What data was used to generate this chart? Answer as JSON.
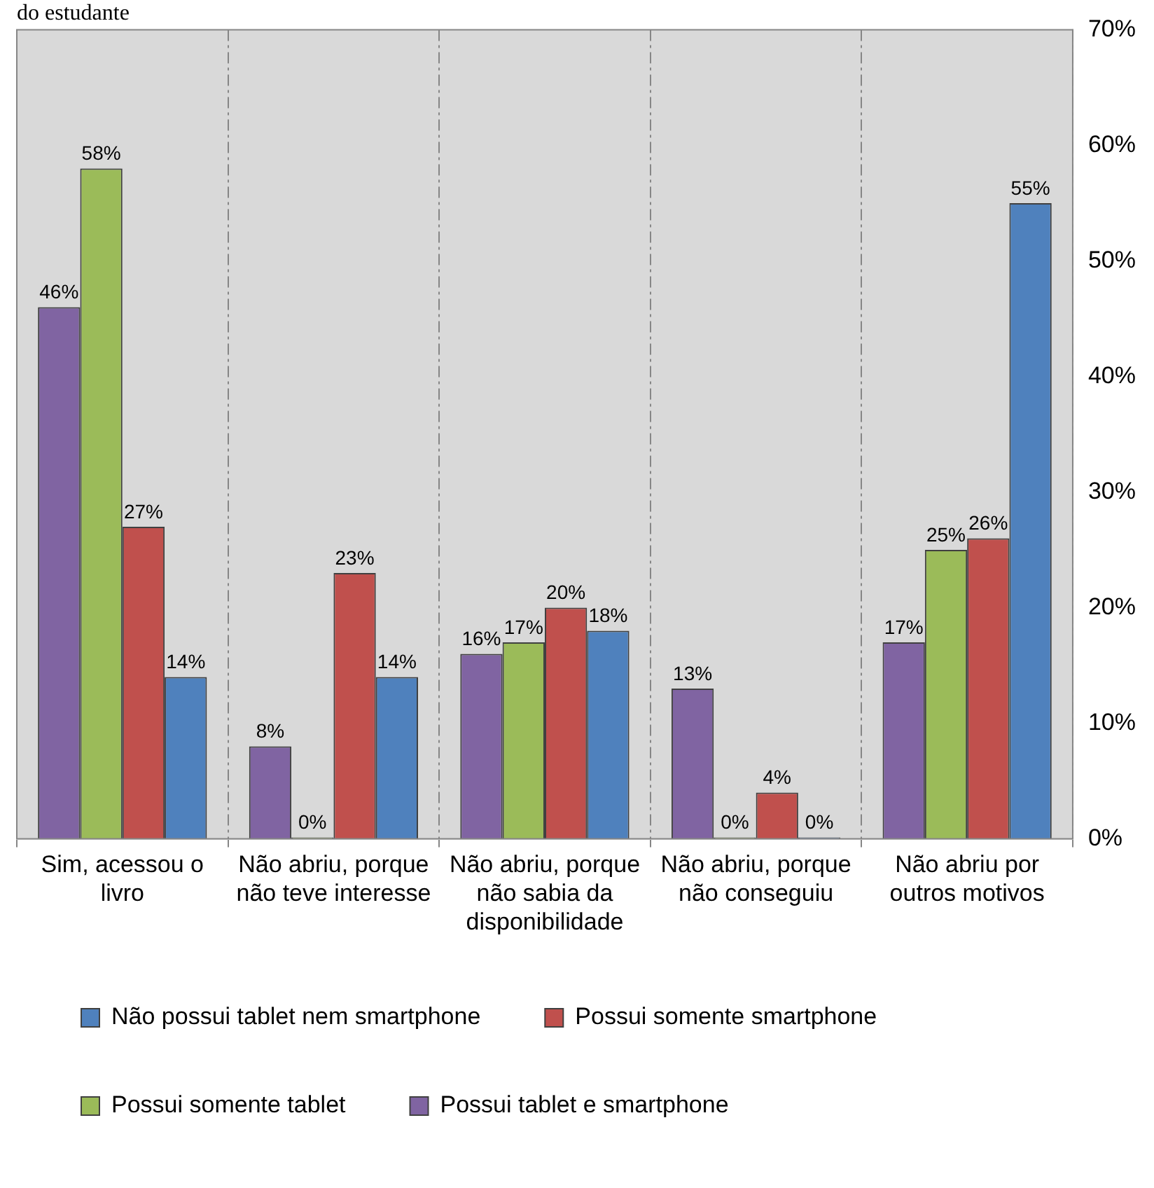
{
  "chart_data": {
    "type": "bar",
    "title": "do estudante",
    "categories": [
      "Sim, acessou o livro",
      "Não abriu, porque não teve interesse",
      "Não abriu, porque não sabia da disponibilidade",
      "Não abriu, porque não conseguiu",
      "Não abriu por outros motivos"
    ],
    "series": [
      {
        "name": "Possui tablet e smartphone",
        "color": "#8064a2",
        "values": [
          46,
          8,
          16,
          13,
          17
        ],
        "value_labels": [
          "46%",
          "8%",
          "16%",
          "13%",
          "17%"
        ]
      },
      {
        "name": "Possui somente tablet",
        "color": "#9bbb59",
        "values": [
          58,
          0,
          17,
          0,
          25
        ],
        "value_labels": [
          "58%",
          "0%",
          "17%",
          "0%",
          "25%"
        ]
      },
      {
        "name": "Possui somente smartphone",
        "color": "#c0504d",
        "values": [
          27,
          23,
          20,
          4,
          26
        ],
        "value_labels": [
          "27%",
          "23%",
          "20%",
          "4%",
          "26%"
        ]
      },
      {
        "name": "Não possui tablet nem smartphone",
        "color": "#4f81bd",
        "values": [
          14,
          14,
          18,
          0,
          55
        ],
        "value_labels": [
          "14%",
          "14%",
          "18%",
          "0%",
          "55%"
        ]
      }
    ],
    "ylim": [
      0,
      70
    ],
    "yticks": [
      {
        "value": 0,
        "label": "0%"
      },
      {
        "value": 10,
        "label": "10%"
      },
      {
        "value": 20,
        "label": "20%"
      },
      {
        "value": 30,
        "label": "30%"
      },
      {
        "value": 40,
        "label": "40%"
      },
      {
        "value": 50,
        "label": "50%"
      },
      {
        "value": 60,
        "label": "60%"
      },
      {
        "value": 70,
        "label": "70%"
      }
    ],
    "grid": "x",
    "legend": "bottom"
  }
}
